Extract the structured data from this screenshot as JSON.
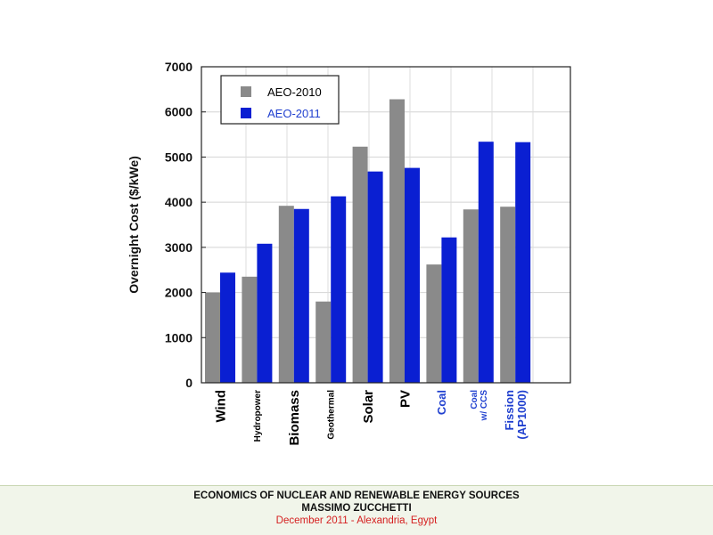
{
  "chart_data": {
    "type": "bar",
    "categories": [
      {
        "lines": [
          "Wind"
        ],
        "color": "#000000",
        "size": "large"
      },
      {
        "lines": [
          "Hydropower"
        ],
        "color": "#000000",
        "size": "small"
      },
      {
        "lines": [
          "Biomass"
        ],
        "color": "#000000",
        "size": "large"
      },
      {
        "lines": [
          "Geothermal"
        ],
        "color": "#000000",
        "size": "small"
      },
      {
        "lines": [
          "Solar"
        ],
        "color": "#000000",
        "size": "large"
      },
      {
        "lines": [
          "PV"
        ],
        "color": "#000000",
        "size": "large"
      },
      {
        "lines": [
          "Coal"
        ],
        "color": "#1f3fcf",
        "size": "medium"
      },
      {
        "lines": [
          "Coal",
          "w/ CCS"
        ],
        "color": "#1f3fcf",
        "size": "small"
      },
      {
        "lines": [
          "Fission",
          "(AP1000)"
        ],
        "color": "#1f3fcf",
        "size": "medium"
      }
    ],
    "series": [
      {
        "name": "AEO-2010",
        "color": "#8a8a8a",
        "label_color": "#000000",
        "values": [
          2000,
          2350,
          3920,
          1800,
          5230,
          6280,
          2620,
          3840,
          3900
        ]
      },
      {
        "name": "AEO-2011",
        "color": "#0a1fd2",
        "label_color": "#1f3fcf",
        "values": [
          2440,
          3080,
          3850,
          4130,
          4680,
          4760,
          3220,
          5340,
          5330
        ]
      }
    ],
    "ylabel": "Overnight Cost ($/kWe)",
    "ylim": [
      0,
      7000
    ],
    "yticks": [
      "0",
      "1000",
      "2000",
      "3000",
      "4000",
      "5000",
      "6000",
      "7000"
    ],
    "grid": true,
    "legend_position": "top-left"
  },
  "footer": {
    "line1": "ECONOMICS OF NUCLEAR AND RENEWABLE ENERGY SOURCES",
    "line2": "MASSIMO ZUCCHETTI",
    "line3": "December 2011 - Alexandria, Egypt"
  }
}
